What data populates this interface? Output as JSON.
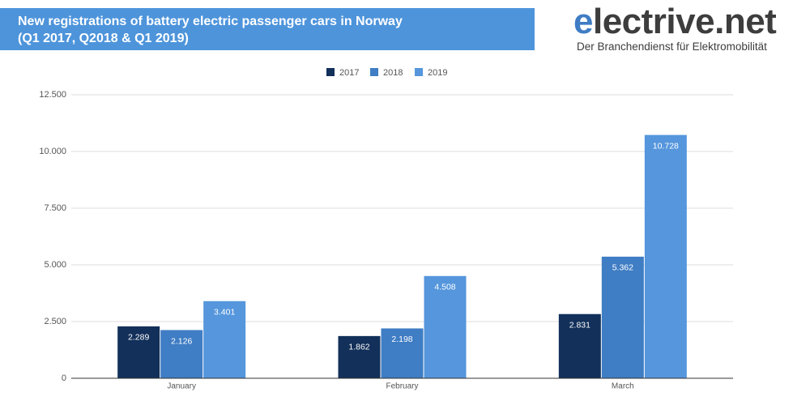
{
  "chart_data": {
    "type": "bar",
    "title": "New registrations of battery electric passenger cars in Norway",
    "subtitle": "(Q1 2017, Q2018 & Q1 2019)",
    "logo": "electrive.net",
    "tagline": "Der Branchendienst für Elektromobilität",
    "categories": [
      "January",
      "February",
      "March"
    ],
    "series": [
      {
        "name": "2017",
        "color": "#12305a",
        "values": [
          2289,
          1862,
          2831
        ],
        "value_labels": [
          "2.289",
          "1.862",
          "2.831"
        ]
      },
      {
        "name": "2018",
        "color": "#3f7dc4",
        "values": [
          2126,
          2198,
          5362
        ],
        "value_labels": [
          "2.126",
          "2.198",
          "5.362"
        ]
      },
      {
        "name": "2019",
        "color": "#5596dc",
        "values": [
          3401,
          4508,
          10728
        ],
        "value_labels": [
          "3.401",
          "4.508",
          "10.728"
        ]
      }
    ],
    "ylim": [
      0,
      12500
    ],
    "yticks": [
      0,
      {
        "value": 2500,
        "label": "2.500"
      },
      {
        "value": 5000,
        "label": "5.000"
      },
      {
        "value": 7500,
        "label": "7.500"
      },
      {
        "value": 10000,
        "label": "10.000"
      },
      {
        "value": 12500,
        "label": "12.500"
      }
    ],
    "grid": true
  }
}
